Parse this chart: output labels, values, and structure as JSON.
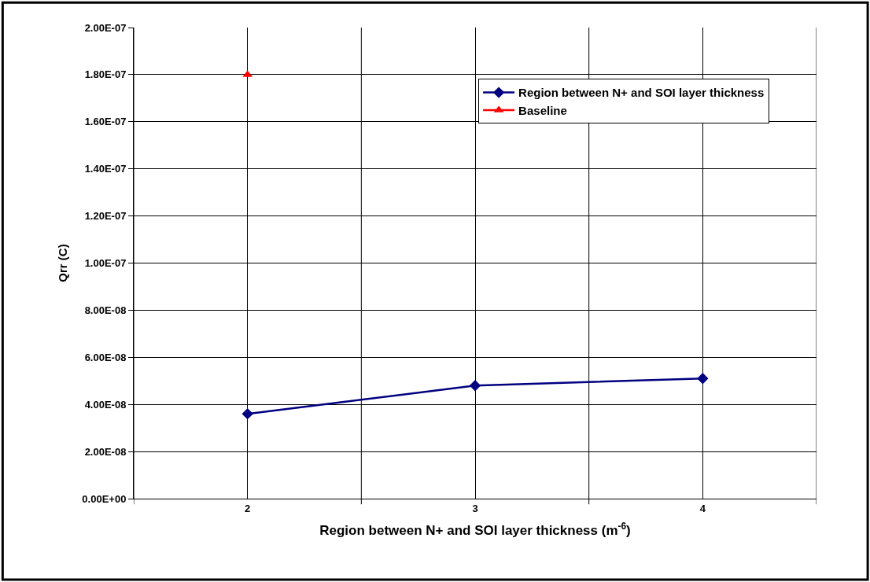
{
  "chart_data": {
    "type": "line",
    "xlabel": "Region between N+ and SOI layer thickness (m$^{-6}$)",
    "ylabel": "Qrr (C)",
    "categories": [
      "2",
      "3",
      "4"
    ],
    "series": [
      {
        "name": "Region between N+ and SOI layer thickness",
        "color": "#000080",
        "values": [
          3.6e-08,
          4.8e-08,
          5.1e-08
        ],
        "marker": "diamond"
      },
      {
        "name": "Baseline",
        "color": "#ff0000",
        "values": [
          1.8e-07,
          null,
          null
        ],
        "marker": "triangle"
      }
    ],
    "ylim": [
      0,
      2e-07
    ],
    "yticks": [
      {
        "value": 0,
        "label": "0.00E+00"
      },
      {
        "value": 2e-08,
        "label": "2.00E-08"
      },
      {
        "value": 4e-08,
        "label": "4.00E-08"
      },
      {
        "value": 6e-08,
        "label": "6.00E-08"
      },
      {
        "value": 8e-08,
        "label": "8.00E-08"
      },
      {
        "value": 1e-07,
        "label": "1.00E-07"
      },
      {
        "value": 1.2e-07,
        "label": "1.20E-07"
      },
      {
        "value": 1.4e-07,
        "label": "1.40E-07"
      },
      {
        "value": 1.6e-07,
        "label": "1.60E-07"
      },
      {
        "value": 1.8e-07,
        "label": "1.80E-07"
      },
      {
        "value": 2e-07,
        "label": "2.00E-07"
      }
    ],
    "grid": true,
    "legend": "top right"
  }
}
